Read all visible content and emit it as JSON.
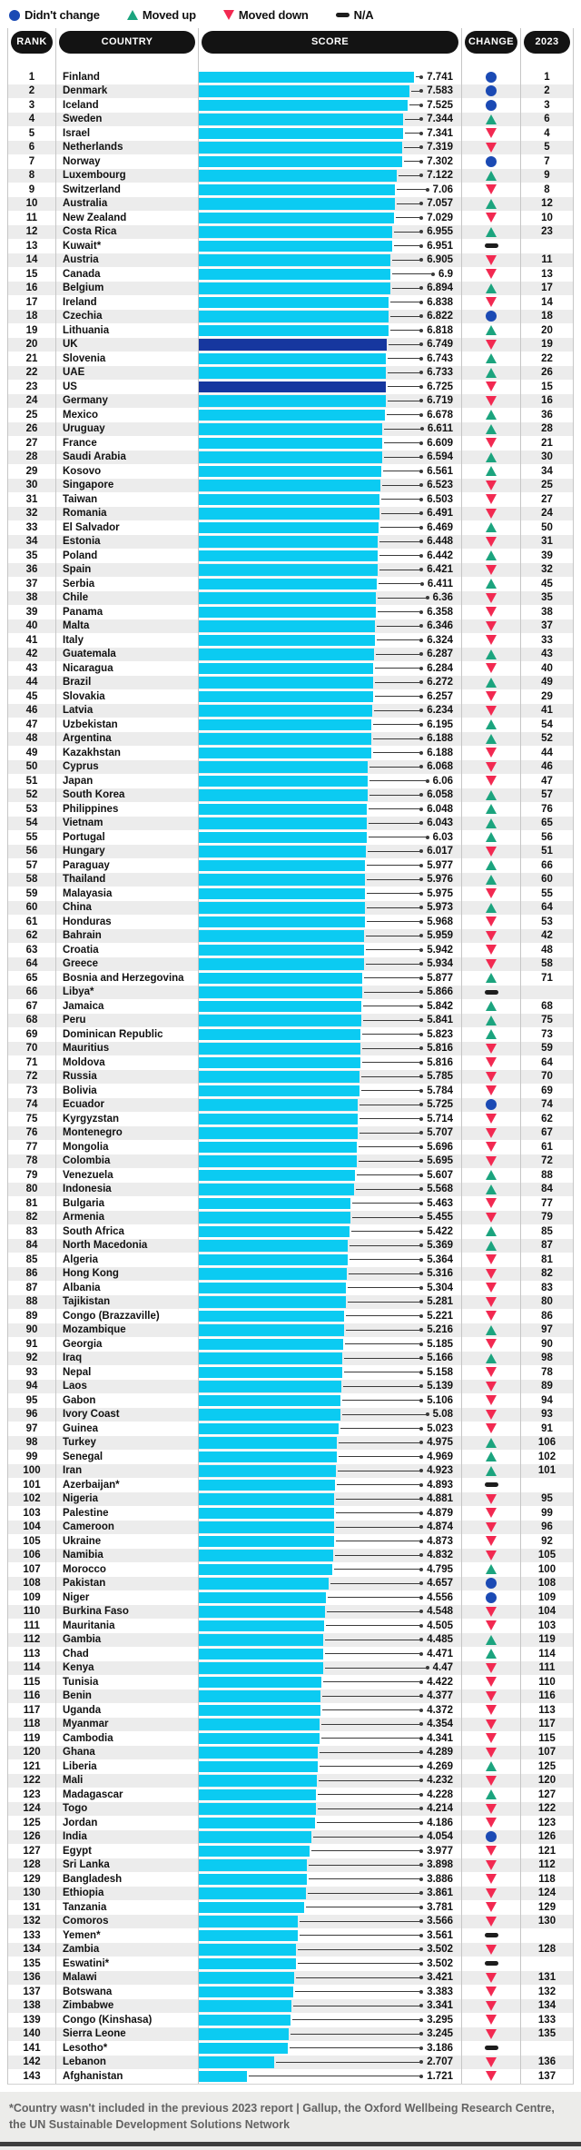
{
  "legend": {
    "items": [
      {
        "icon": "circle",
        "label": "Didn't change"
      },
      {
        "icon": "triangle-up",
        "label": "Moved up"
      },
      {
        "icon": "triangle-down",
        "label": "Moved down"
      },
      {
        "icon": "bar",
        "label": "N/A"
      }
    ]
  },
  "table": {
    "headers": [
      "RANK",
      "COUNTRY",
      "SCORE",
      "CHANGE",
      "2023"
    ]
  },
  "colors": {
    "bar": "#0BCBF2",
    "bar_highlight": "#16379F",
    "no_change": "#1B4AB4",
    "moved_up": "#1BA47E",
    "moved_down": "#F22951",
    "na": "#1D1D1D"
  },
  "footer": {
    "note": "*Country wasn't included in the previous 2023 report",
    "separator": "|",
    "source": "Gallup, the Oxford Wellbeing Research Centre, the UN Sustainable Development Solutions Network"
  },
  "chart_data": {
    "type": "bar",
    "orientation": "horizontal",
    "value_range": [
      0,
      7.741
    ],
    "highlight_ranks": [
      20,
      23
    ],
    "categories": [
      "Finland",
      "Denmark",
      "Iceland",
      "Sweden",
      "Israel",
      "Netherlands",
      "Norway",
      "Luxembourg",
      "Switzerland",
      "Australia",
      "New Zealand",
      "Costa Rica",
      "Kuwait*",
      "Austria",
      "Canada",
      "Belgium",
      "Ireland",
      "Czechia",
      "Lithuania",
      "UK",
      "Slovenia",
      "UAE",
      "US",
      "Germany",
      "Mexico",
      "Uruguay",
      "France",
      "Saudi Arabia",
      "Kosovo",
      "Singapore",
      "Taiwan",
      "Romania",
      "El Salvador",
      "Estonia",
      "Poland",
      "Spain",
      "Serbia",
      "Chile",
      "Panama",
      "Malta",
      "Italy",
      "Guatemala",
      "Nicaragua",
      "Brazil",
      "Slovakia",
      "Latvia",
      "Uzbekistan",
      "Argentina",
      "Kazakhstan",
      "Cyprus",
      "Japan",
      "South Korea",
      "Philippines",
      "Vietnam",
      "Portugal",
      "Hungary",
      "Paraguay",
      "Thailand",
      "Malayasia",
      "China",
      "Honduras",
      "Bahrain",
      "Croatia",
      "Greece",
      "Bosnia and Herzegovina",
      "Libya*",
      "Jamaica",
      "Peru",
      "Dominican Republic",
      "Mauritius",
      "Moldova",
      "Russia",
      "Bolivia",
      "Ecuador",
      "Kyrgyzstan",
      "Montenegro",
      "Mongolia",
      "Colombia",
      "Venezuela",
      "Indonesia",
      "Bulgaria",
      "Armenia",
      "South Africa",
      "North Macedonia",
      "Algeria",
      "Hong Kong",
      "Albania",
      "Tajikistan",
      "Congo (Brazzaville)",
      "Mozambique",
      "Georgia",
      "Iraq",
      "Nepal",
      "Laos",
      "Gabon",
      "Ivory Coast",
      "Guinea",
      "Turkey",
      "Senegal",
      "Iran",
      "Azerbaijan*",
      "Nigeria",
      "Palestine",
      "Cameroon",
      "Ukraine",
      "Namibia",
      "Morocco",
      "Pakistan",
      "Niger",
      "Burkina Faso",
      "Mauritania",
      "Gambia",
      "Chad",
      "Kenya",
      "Tunisia",
      "Benin",
      "Uganda",
      "Myanmar",
      "Cambodia",
      "Ghana",
      "Liberia",
      "Mali",
      "Madagascar",
      "Togo",
      "Jordan",
      "India",
      "Egypt",
      "Sri Lanka",
      "Bangladesh",
      "Ethiopia",
      "Tanzania",
      "Comoros",
      "Yemen*",
      "Zambia",
      "Eswatini*",
      "Malawi",
      "Botswana",
      "Zimbabwe",
      "Congo (Kinshasa)",
      "Sierra Leone",
      "Lesotho*",
      "Lebanon",
      "Afghanistan"
    ],
    "values": [
      "7.741",
      "7.583",
      "7.525",
      "7.344",
      "7.341",
      "7.319",
      "7.302",
      "7.122",
      "7.06",
      "7.057",
      "7.029",
      "6.955",
      "6.951",
      "6.905",
      "6.9",
      "6.894",
      "6.838",
      "6.822",
      "6.818",
      "6.749",
      "6.743",
      "6.733",
      "6.725",
      "6.719",
      "6.678",
      "6.611",
      "6.609",
      "6.594",
      "6.561",
      "6.523",
      "6.503",
      "6.491",
      "6.469",
      "6.448",
      "6.442",
      "6.421",
      "6.411",
      "6.36",
      "6.358",
      "6.346",
      "6.324",
      "6.287",
      "6.284",
      "6.272",
      "6.257",
      "6.234",
      "6.195",
      "6.188",
      "6.188",
      "6.068",
      "6.06",
      "6.058",
      "6.048",
      "6.043",
      "6.03",
      "6.017",
      "5.977",
      "5.976",
      "5.975",
      "5.973",
      "5.968",
      "5.959",
      "5.942",
      "5.934",
      "5.877",
      "5.866",
      "5.842",
      "5.841",
      "5.823",
      "5.816",
      "5.816",
      "5.785",
      "5.784",
      "5.725",
      "5.714",
      "5.707",
      "5.696",
      "5.695",
      "5.607",
      "5.568",
      "5.463",
      "5.455",
      "5.422",
      "5.369",
      "5.364",
      "5.316",
      "5.304",
      "5.281",
      "5.221",
      "5.216",
      "5.185",
      "5.166",
      "5.158",
      "5.139",
      "5.106",
      "5.08",
      "5.023",
      "4.975",
      "4.969",
      "4.923",
      "4.893",
      "4.881",
      "4.879",
      "4.874",
      "4.873",
      "4.832",
      "4.795",
      "4.657",
      "4.556",
      "4.548",
      "4.505",
      "4.485",
      "4.471",
      "4.47",
      "4.422",
      "4.377",
      "4.372",
      "4.354",
      "4.341",
      "4.289",
      "4.269",
      "4.232",
      "4.228",
      "4.214",
      "4.186",
      "4.054",
      "3.977",
      "3.898",
      "3.886",
      "3.861",
      "3.781",
      "3.566",
      "3.561",
      "3.502",
      "3.502",
      "3.421",
      "3.383",
      "3.341",
      "3.295",
      "3.245",
      "3.186",
      "2.707",
      "1.721"
    ],
    "change": [
      "same",
      "same",
      "same",
      "up",
      "down",
      "down",
      "same",
      "up",
      "down",
      "up",
      "down",
      "up",
      "na",
      "down",
      "down",
      "up",
      "down",
      "same",
      "up",
      "down",
      "up",
      "up",
      "down",
      "down",
      "up",
      "up",
      "down",
      "up",
      "up",
      "down",
      "down",
      "down",
      "up",
      "down",
      "up",
      "down",
      "up",
      "down",
      "down",
      "down",
      "down",
      "up",
      "down",
      "up",
      "down",
      "down",
      "up",
      "up",
      "down",
      "down",
      "down",
      "up",
      "up",
      "up",
      "up",
      "down",
      "up",
      "up",
      "down",
      "up",
      "down",
      "down",
      "down",
      "down",
      "up",
      "na",
      "up",
      "up",
      "up",
      "down",
      "down",
      "down",
      "down",
      "same",
      "down",
      "down",
      "down",
      "down",
      "up",
      "up",
      "down",
      "down",
      "up",
      "up",
      "down",
      "down",
      "down",
      "down",
      "down",
      "up",
      "down",
      "up",
      "down",
      "down",
      "down",
      "down",
      "down",
      "up",
      "up",
      "up",
      "na",
      "down",
      "down",
      "down",
      "down",
      "down",
      "up",
      "same",
      "same",
      "down",
      "down",
      "up",
      "up",
      "down",
      "down",
      "down",
      "down",
      "down",
      "down",
      "down",
      "up",
      "down",
      "up",
      "down",
      "down",
      "same",
      "down",
      "down",
      "down",
      "down",
      "down",
      "down",
      "na",
      "down",
      "na",
      "down",
      "down",
      "down",
      "down",
      "down",
      "na",
      "down",
      "down"
    ],
    "prev_rank": [
      "1",
      "2",
      "3",
      "6",
      "4",
      "5",
      "7",
      "9",
      "8",
      "12",
      "10",
      "23",
      "",
      "11",
      "13",
      "17",
      "14",
      "18",
      "20",
      "19",
      "22",
      "26",
      "15",
      "16",
      "36",
      "28",
      "21",
      "30",
      "34",
      "25",
      "27",
      "24",
      "50",
      "31",
      "39",
      "32",
      "45",
      "35",
      "38",
      "37",
      "33",
      "43",
      "40",
      "49",
      "29",
      "41",
      "54",
      "52",
      "44",
      "46",
      "47",
      "57",
      "76",
      "65",
      "56",
      "51",
      "66",
      "60",
      "55",
      "64",
      "53",
      "42",
      "48",
      "58",
      "71",
      "",
      "68",
      "75",
      "73",
      "59",
      "64",
      "70",
      "69",
      "74",
      "62",
      "67",
      "61",
      "72",
      "88",
      "84",
      "77",
      "79",
      "85",
      "87",
      "81",
      "82",
      "83",
      "80",
      "86",
      "97",
      "90",
      "98",
      "78",
      "89",
      "94",
      "93",
      "91",
      "106",
      "102",
      "101",
      "",
      "95",
      "99",
      "96",
      "92",
      "105",
      "100",
      "108",
      "109",
      "104",
      "103",
      "119",
      "114",
      "111",
      "110",
      "116",
      "113",
      "117",
      "115",
      "107",
      "125",
      "120",
      "127",
      "122",
      "123",
      "126",
      "121",
      "112",
      "118",
      "124",
      "129",
      "130",
      "",
      "128",
      "",
      "131",
      "132",
      "134",
      "133",
      "135",
      "",
      "136",
      "137"
    ]
  }
}
